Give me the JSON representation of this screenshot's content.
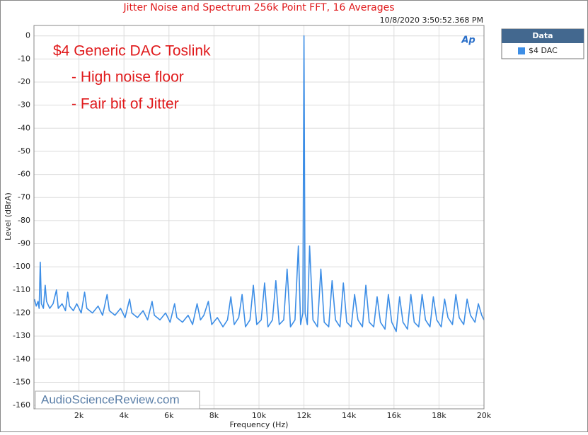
{
  "chart_data": {
    "type": "line",
    "title": "Jitter Noise and Spectrum 256k Point FFT, 16 Averages",
    "timestamp": "10/8/2020 3:50:52.368 PM",
    "logo": "Ap",
    "annotations": [
      "$4 Generic DAC Toslink",
      "- High noise floor",
      "- Fair bit of Jitter"
    ],
    "watermark": "AudioScienceReview.com",
    "x_label": "Frequency (Hz)",
    "y_label": "Level (dBrA)",
    "legend_title": "Data",
    "legend_position": "right",
    "grid": true,
    "xlim": [
      0,
      20000
    ],
    "ylim": [
      -161.5,
      4.5
    ],
    "xticks": [
      {
        "value": 2000,
        "label": "2k"
      },
      {
        "value": 4000,
        "label": "4k"
      },
      {
        "value": 6000,
        "label": "6k"
      },
      {
        "value": 8000,
        "label": "8k"
      },
      {
        "value": 10000,
        "label": "10k"
      },
      {
        "value": 12000,
        "label": "12k"
      },
      {
        "value": 14000,
        "label": "14k"
      },
      {
        "value": 16000,
        "label": "16k"
      },
      {
        "value": 18000,
        "label": "18k"
      },
      {
        "value": 20000,
        "label": "20k"
      }
    ],
    "yticks": [
      0,
      -10,
      -20,
      -30,
      -40,
      -50,
      -60,
      -70,
      -80,
      -90,
      -100,
      -110,
      -120,
      -130,
      -140,
      -150,
      -160
    ],
    "x": [
      20,
      100,
      180,
      230,
      280,
      330,
      420,
      500,
      560,
      700,
      850,
      1000,
      1080,
      1250,
      1400,
      1500,
      1580,
      1750,
      1900,
      2100,
      2250,
      2350,
      2600,
      2850,
      3050,
      3250,
      3350,
      3600,
      3850,
      4050,
      4250,
      4350,
      4600,
      4850,
      5050,
      5250,
      5350,
      5600,
      5850,
      6050,
      6250,
      6350,
      6600,
      6850,
      7050,
      7250,
      7400,
      7550,
      7750,
      7900,
      8150,
      8400,
      8600,
      8750,
      8900,
      9100,
      9250,
      9400,
      9600,
      9750,
      9900,
      10100,
      10250,
      10400,
      10600,
      10750,
      10900,
      11100,
      11250,
      11400,
      11600,
      11750,
      11850,
      11950,
      12000,
      12050,
      12150,
      12250,
      12400,
      12600,
      12750,
      12900,
      13100,
      13250,
      13400,
      13600,
      13750,
      13900,
      14100,
      14250,
      14400,
      14600,
      14750,
      14900,
      15100,
      15250,
      15400,
      15600,
      15750,
      15900,
      16100,
      16250,
      16400,
      16600,
      16750,
      16900,
      17100,
      17250,
      17400,
      17600,
      17750,
      17900,
      18100,
      18250,
      18400,
      18600,
      18750,
      18900,
      19100,
      19250,
      19400,
      19600,
      19750,
      19900,
      20000
    ],
    "series": [
      {
        "name": "$4 DAC",
        "color": "#3d8ee6",
        "values": [
          -114,
          -117,
          -115,
          -118,
          -98,
          -116,
          -118,
          -108,
          -115,
          -118,
          -116,
          -110,
          -118,
          -116,
          -119,
          -111,
          -117,
          -119,
          -116,
          -120,
          -111,
          -118,
          -120,
          -117,
          -121,
          -112,
          -119,
          -121,
          -118,
          -122,
          -114,
          -120,
          -122,
          -119,
          -123,
          -115,
          -121,
          -123,
          -120,
          -124,
          -116,
          -122,
          -124,
          -121,
          -125,
          -116,
          -123,
          -121,
          -115,
          -125,
          -122,
          -126,
          -123,
          -113,
          -125,
          -122,
          -112,
          -126,
          -123,
          -108,
          -125,
          -123,
          -107,
          -126,
          -123,
          -106,
          -125,
          -123,
          -101,
          -126,
          -123,
          -91,
          -125,
          -120,
          0,
          -120,
          -125,
          -91,
          -123,
          -126,
          -101,
          -124,
          -126,
          -106,
          -123,
          -126,
          -107,
          -124,
          -126,
          -112,
          -123,
          -126,
          -108,
          -124,
          -126,
          -113,
          -124,
          -127,
          -112,
          -124,
          -128,
          -113,
          -124,
          -127,
          -112,
          -124,
          -126,
          -112,
          -123,
          -126,
          -113,
          -123,
          -126,
          -114,
          -122,
          -125,
          -112,
          -122,
          -125,
          -114,
          -121,
          -124,
          -116,
          -121,
          -123
        ]
      }
    ]
  }
}
